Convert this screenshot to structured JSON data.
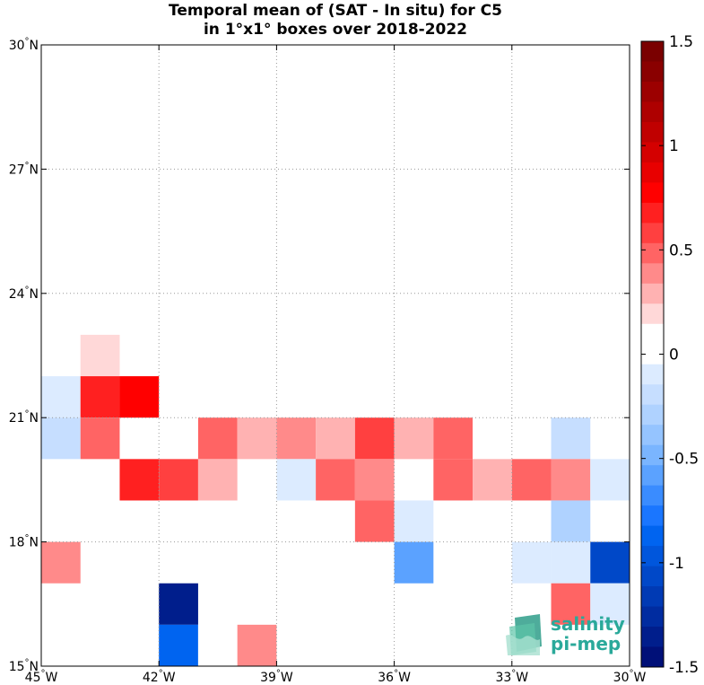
{
  "title_line1": "Temporal mean of (SAT - In situ) for C5",
  "title_line2": "in 1°x1° boxes over 2018-2022",
  "chart_data": {
    "type": "heatmap",
    "x_range": [
      -45,
      -30
    ],
    "y_range": [
      15,
      30
    ],
    "x_ticks": [
      {
        "v": -45,
        "deg": "45",
        "hem": "W"
      },
      {
        "v": -42,
        "deg": "42",
        "hem": "W"
      },
      {
        "v": -39,
        "deg": "39",
        "hem": "W"
      },
      {
        "v": -36,
        "deg": "36",
        "hem": "W"
      },
      {
        "v": -33,
        "deg": "33",
        "hem": "W"
      },
      {
        "v": -30,
        "deg": "30",
        "hem": "W"
      }
    ],
    "y_ticks": [
      {
        "v": 15,
        "deg": "15",
        "hem": "N"
      },
      {
        "v": 18,
        "deg": "18",
        "hem": "N"
      },
      {
        "v": 21,
        "deg": "21",
        "hem": "N"
      },
      {
        "v": 24,
        "deg": "24",
        "hem": "N"
      },
      {
        "v": 27,
        "deg": "27",
        "hem": "N"
      },
      {
        "v": 30,
        "deg": "30",
        "hem": "N"
      }
    ],
    "grid": true,
    "colorbar": {
      "min": -1.5,
      "max": 1.5,
      "ticks": [
        {
          "v": 1.5,
          "label": "1.5"
        },
        {
          "v": 1,
          "label": "1"
        },
        {
          "v": 0.5,
          "label": "0.5"
        },
        {
          "v": 0,
          "label": "0"
        },
        {
          "v": -0.5,
          "label": "-0.5"
        },
        {
          "v": -1,
          "label": "-1"
        },
        {
          "v": -1.5,
          "label": "-1.5"
        }
      ],
      "colors_top_to_bottom": [
        "#7a0000",
        "#8a0000",
        "#9c0000",
        "#ae0000",
        "#c00000",
        "#d40000",
        "#e80000",
        "#ff0000",
        "#ff2020",
        "#ff4040",
        "#ff6464",
        "#ff8a8a",
        "#ffb2b2",
        "#ffd8d8",
        "#ffffff",
        "#ffffff",
        "#dcebff",
        "#c6deff",
        "#afd2ff",
        "#95c4ff",
        "#7ab5ff",
        "#5ba2ff",
        "#3a8cff",
        "#1a76ff",
        "#0064f0",
        "#0056dc",
        "#0048c8",
        "#003ab4",
        "#002ca0",
        "#001e8c",
        "#001078"
      ]
    },
    "cells": [
      {
        "lon": -44,
        "lat": 22,
        "value": 0.24
      },
      {
        "lon": -45,
        "lat": 21,
        "value": -0.12
      },
      {
        "lon": -44,
        "lat": 21,
        "value": 0.65
      },
      {
        "lon": -43,
        "lat": 21,
        "value": 0.75
      },
      {
        "lon": -39,
        "lat": 21,
        "value": 0.12
      },
      {
        "lon": -45,
        "lat": 20,
        "value": -0.2
      },
      {
        "lon": -44,
        "lat": 20,
        "value": 0.5
      },
      {
        "lon": -41,
        "lat": 20,
        "value": 0.5
      },
      {
        "lon": -40,
        "lat": 20,
        "value": 0.25
      },
      {
        "lon": -39,
        "lat": 20,
        "value": 0.4
      },
      {
        "lon": -38,
        "lat": 20,
        "value": 0.25
      },
      {
        "lon": -37,
        "lat": 20,
        "value": 0.6
      },
      {
        "lon": -36,
        "lat": 20,
        "value": 0.25
      },
      {
        "lon": -35,
        "lat": 20,
        "value": 0.5
      },
      {
        "lon": -34,
        "lat": 20,
        "value": 0.12
      },
      {
        "lon": -32,
        "lat": 20,
        "value": -0.2
      },
      {
        "lon": -43,
        "lat": 19,
        "value": 0.65
      },
      {
        "lon": -42,
        "lat": 19,
        "value": 0.6
      },
      {
        "lon": -41,
        "lat": 19,
        "value": 0.25
      },
      {
        "lon": -39,
        "lat": 19,
        "value": -0.12
      },
      {
        "lon": -38,
        "lat": 19,
        "value": 0.5
      },
      {
        "lon": -37,
        "lat": 19,
        "value": 0.4
      },
      {
        "lon": -35,
        "lat": 19,
        "value": 0.5
      },
      {
        "lon": -34,
        "lat": 19,
        "value": 0.25
      },
      {
        "lon": -33,
        "lat": 19,
        "value": 0.5
      },
      {
        "lon": -32,
        "lat": 19,
        "value": 0.4
      },
      {
        "lon": -31,
        "lat": 19,
        "value": -0.12
      },
      {
        "lon": -37,
        "lat": 18,
        "value": 0.5
      },
      {
        "lon": -36,
        "lat": 18,
        "value": -0.12
      },
      {
        "lon": -32,
        "lat": 18,
        "value": -0.25
      },
      {
        "lon": -45,
        "lat": 17,
        "value": 0.4
      },
      {
        "lon": -36,
        "lat": 17,
        "value": -0.55
      },
      {
        "lon": -33,
        "lat": 17,
        "value": -0.12
      },
      {
        "lon": -32,
        "lat": 17,
        "value": -0.12
      },
      {
        "lon": -31,
        "lat": 17,
        "value": -1.1
      },
      {
        "lon": -43,
        "lat": 16,
        "value": 0.12
      },
      {
        "lon": -42,
        "lat": 16,
        "value": -1.4
      },
      {
        "lon": -32,
        "lat": 16,
        "value": 0.5
      },
      {
        "lon": -31,
        "lat": 16,
        "value": -0.12
      },
      {
        "lon": -42,
        "lat": 15,
        "value": -0.9
      },
      {
        "lon": -41,
        "lat": 15,
        "value": 0.12
      },
      {
        "lon": -40,
        "lat": 15,
        "value": 0.4
      }
    ]
  },
  "logo": {
    "line1": "salinity",
    "line2": "pi-mep"
  }
}
